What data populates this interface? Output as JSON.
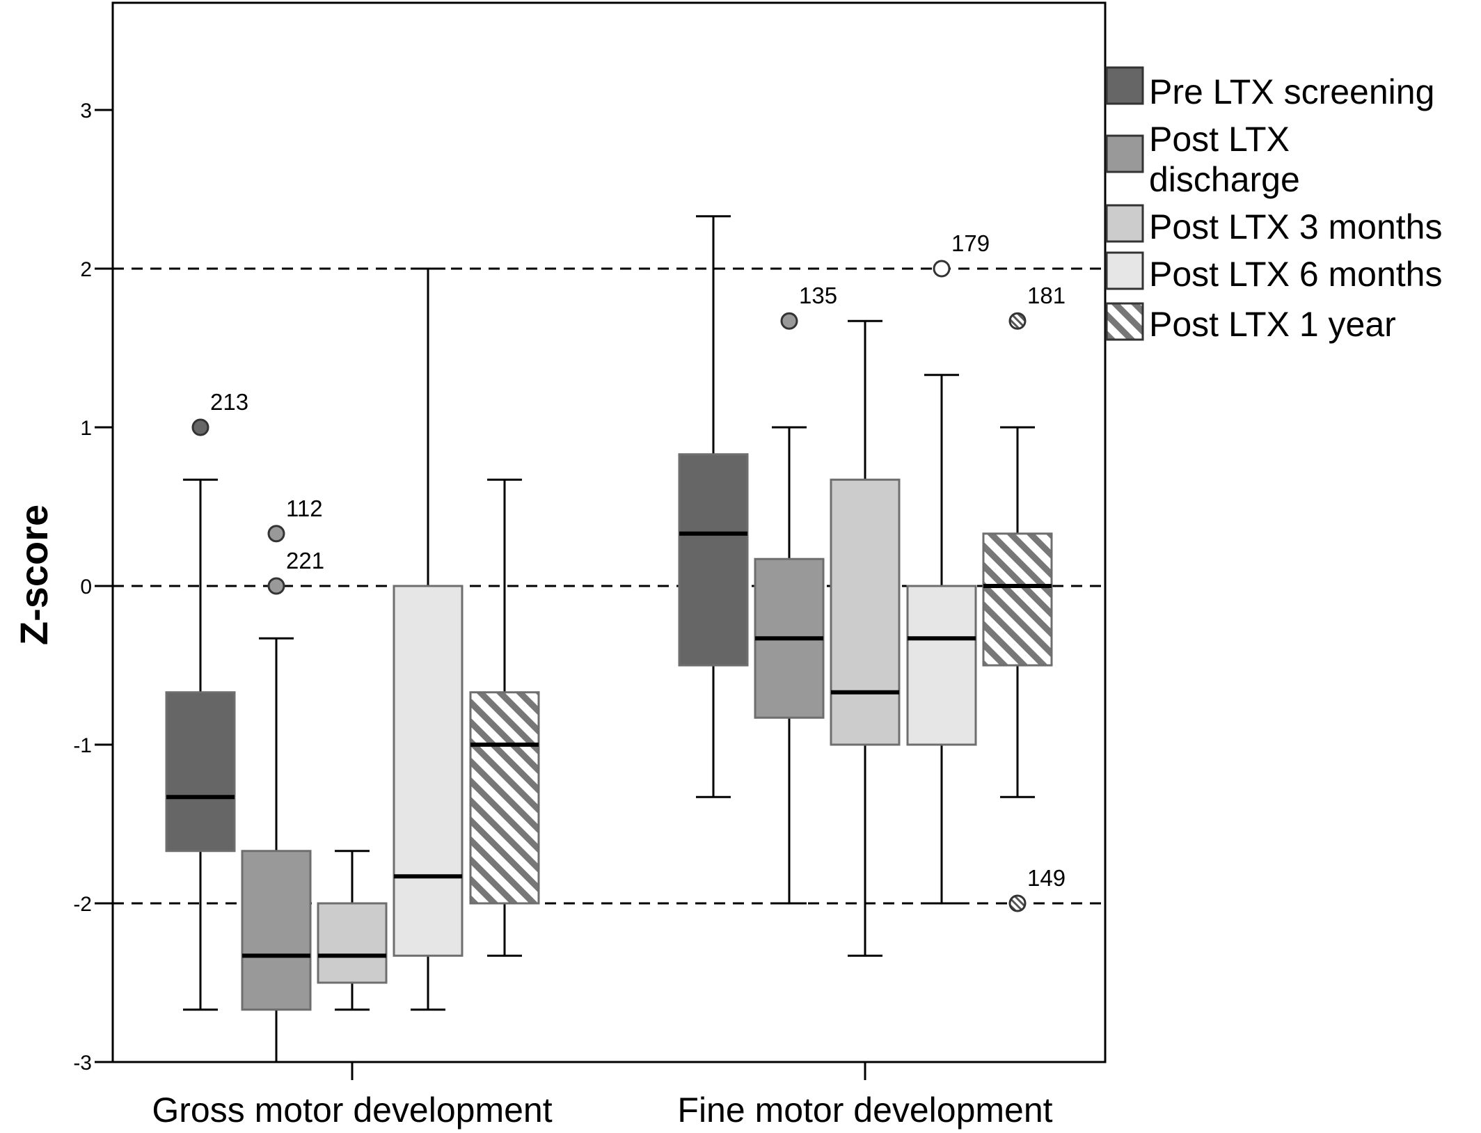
{
  "chart_data": {
    "type": "box",
    "ylabel": "Z-score",
    "xlabel": "",
    "ylim": [
      -3,
      3.7
    ],
    "yticks": [
      3,
      2,
      1,
      0,
      -1,
      -2,
      -3
    ],
    "ytick_labels": [
      "3",
      "2",
      "1",
      "0",
      "-1",
      "-2",
      "-3"
    ],
    "reference_lines": [
      2,
      0,
      -2
    ],
    "grid": false,
    "legend_position": "right",
    "categories": [
      "Gross motor development",
      "Fine motor development"
    ],
    "series": [
      {
        "name": "Pre LTX screening",
        "fill": "#666666",
        "hatch": false,
        "boxes": [
          {
            "q1": -1.67,
            "median": -1.33,
            "q3": -0.67,
            "whisker_low": -2.67,
            "whisker_high": 0.67,
            "outliers": [
              {
                "value": 1.0,
                "label": "213",
                "marker": "solid"
              }
            ]
          },
          {
            "q1": -0.5,
            "median": 0.33,
            "q3": 0.83,
            "whisker_low": -1.33,
            "whisker_high": 2.33,
            "outliers": []
          }
        ]
      },
      {
        "name": "Post LTX discharge",
        "name_lines": [
          "Post LTX",
          "discharge"
        ],
        "fill": "#999999",
        "hatch": false,
        "boxes": [
          {
            "q1": -2.67,
            "median": -2.33,
            "q3": -1.67,
            "whisker_low": -3.0,
            "whisker_high": -0.33,
            "outliers": [
              {
                "value": 0.33,
                "label": "112",
                "marker": "solid"
              },
              {
                "value": 0.0,
                "label": "221",
                "marker": "solid"
              }
            ]
          },
          {
            "q1": -0.83,
            "median": -0.33,
            "q3": 0.17,
            "whisker_low": -2.0,
            "whisker_high": 1.0,
            "outliers": [
              {
                "value": 1.67,
                "label": "135",
                "marker": "solid"
              }
            ]
          }
        ]
      },
      {
        "name": "Post LTX 3 months",
        "fill": "#cccccc",
        "hatch": false,
        "boxes": [
          {
            "q1": -2.5,
            "median": -2.33,
            "q3": -2.0,
            "whisker_low": -2.67,
            "whisker_high": -1.67,
            "outliers": []
          },
          {
            "q1": -1.0,
            "median": -0.67,
            "q3": 0.67,
            "whisker_low": -2.33,
            "whisker_high": 1.67,
            "outliers": []
          }
        ]
      },
      {
        "name": "Post LTX 6 months",
        "fill": "#e6e6e6",
        "hatch": false,
        "boxes": [
          {
            "q1": -2.33,
            "median": -1.83,
            "q3": 0.0,
            "whisker_low": -2.67,
            "whisker_high": 2.0,
            "outliers": []
          },
          {
            "q1": -1.0,
            "median": -0.33,
            "q3": 0.0,
            "whisker_low": -2.0,
            "whisker_high": 1.33,
            "outliers": [
              {
                "value": 2.0,
                "label": "179",
                "marker": "hollow"
              }
            ]
          }
        ]
      },
      {
        "name": "Post LTX 1 year",
        "fill": "#ffffff",
        "hatch": true,
        "hatch_color": "#777777",
        "boxes": [
          {
            "q1": -2.0,
            "median": -1.0,
            "q3": -0.67,
            "whisker_low": -2.33,
            "whisker_high": 0.67,
            "outliers": []
          },
          {
            "q1": -0.5,
            "median": 0.0,
            "q3": 0.33,
            "whisker_low": -1.33,
            "whisker_high": 1.0,
            "outliers": [
              {
                "value": 1.67,
                "label": "181",
                "marker": "hatched"
              },
              {
                "value": -2.0,
                "label": "149",
                "marker": "hatched"
              }
            ]
          }
        ]
      }
    ]
  }
}
